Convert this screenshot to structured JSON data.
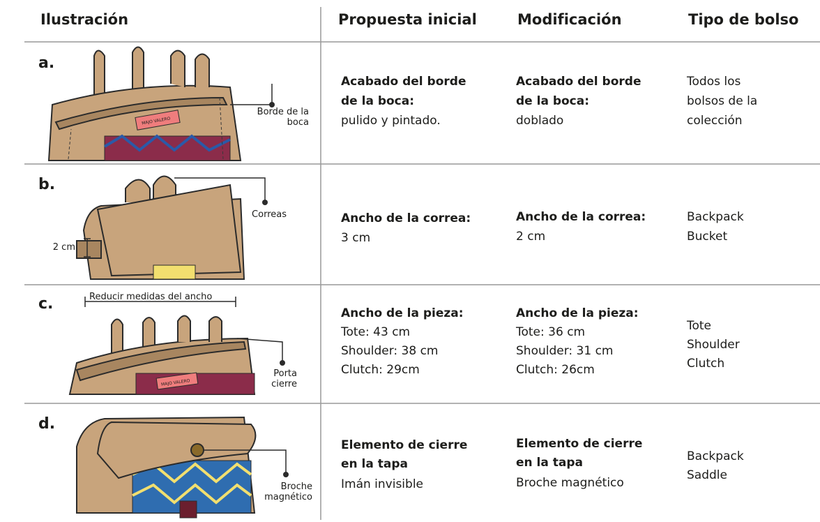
{
  "table": {
    "headers": [
      "Ilustración",
      "Propuesta inicial",
      "Modificación",
      "Tipo de bolso"
    ],
    "rows": [
      {
        "letter": "a.",
        "brand": "MAJO VALERO",
        "labels": [
          [
            "Borde de la",
            "boca"
          ]
        ],
        "propuesta": {
          "title": [
            "Acabado del borde",
            "de la boca:"
          ],
          "lines": [
            "pulido y pintado."
          ]
        },
        "modificacion": {
          "title": [
            "Acabado del borde",
            "de la boca:"
          ],
          "lines": [
            "doblado"
          ]
        },
        "tipo": [
          "Todos los",
          "bolsos de la",
          "colección"
        ]
      },
      {
        "letter": "b.",
        "labels": [
          [
            "Correas"
          ],
          [
            "2 cm"
          ]
        ],
        "propuesta": {
          "title": [
            "Ancho de la correa:"
          ],
          "lines": [
            "3 cm"
          ]
        },
        "modificacion": {
          "title": [
            "Ancho de la correa:"
          ],
          "lines": [
            "2 cm"
          ]
        },
        "tipo": [
          "Backpack",
          "Bucket"
        ]
      },
      {
        "letter": "c.",
        "brand": "MAJO VALERO",
        "labels": [
          [
            "Reducir medidas del ancho"
          ],
          [
            "Porta",
            "cierre"
          ]
        ],
        "propuesta": {
          "title": [
            "Ancho de la pieza:"
          ],
          "lines": [
            "Tote: 43 cm",
            "Shoulder: 38 cm",
            "Clutch: 29cm"
          ]
        },
        "modificacion": {
          "title": [
            "Ancho de la pieza:"
          ],
          "lines": [
            "Tote: 36 cm",
            "Shoulder: 31 cm",
            "Clutch: 26cm"
          ]
        },
        "tipo": [
          "Tote",
          "Shoulder",
          "Clutch"
        ]
      },
      {
        "letter": "d.",
        "labels": [
          [
            "Broche",
            "magnético"
          ]
        ],
        "propuesta": {
          "title": [
            "Elemento de cierre",
            "en la tapa"
          ],
          "lines": [
            "Imán invisible"
          ]
        },
        "modificacion": {
          "title": [
            "Elemento de cierre",
            "en la tapa"
          ],
          "lines": [
            "Broche magnético"
          ]
        },
        "tipo": [
          "Backpack",
          "Saddle"
        ]
      }
    ]
  }
}
